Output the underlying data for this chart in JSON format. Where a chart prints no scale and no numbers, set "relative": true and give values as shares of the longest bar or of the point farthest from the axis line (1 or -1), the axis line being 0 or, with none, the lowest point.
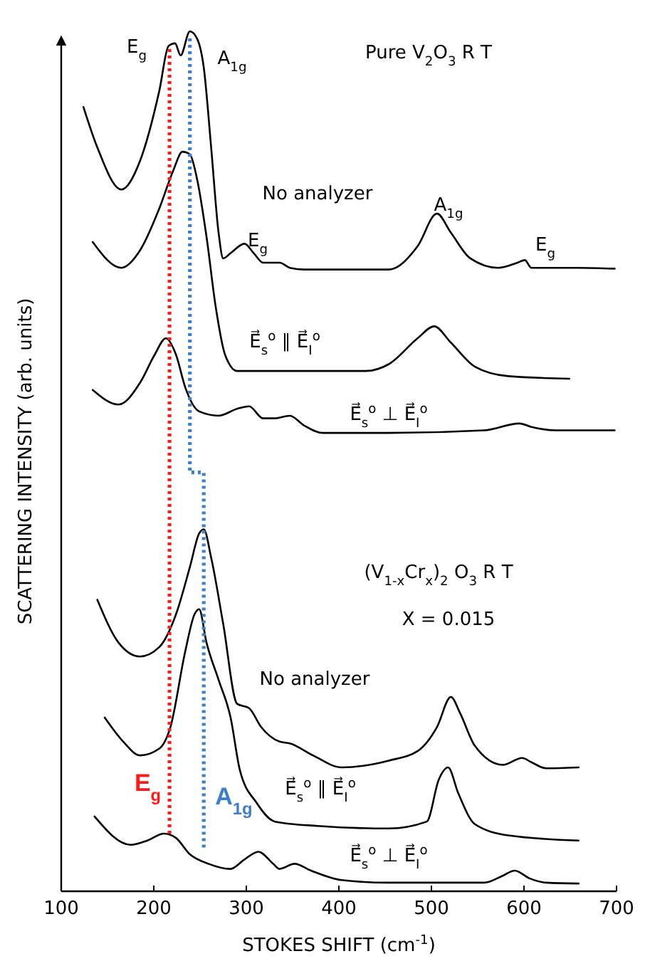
{
  "chart_data": {
    "type": "line",
    "relative": true,
    "xlabel": "STOKES SHIFT (cm$^{-1}$)",
    "ylabel": "SCATTERING INTENSITY (arb. units)",
    "xlim": [
      100,
      700
    ],
    "xticks": [
      100,
      200,
      300,
      400,
      500,
      600,
      700
    ],
    "tick_labels": "x",
    "line_style": "solid",
    "marker": "none",
    "series": [
      {
        "color": "#000000",
        "x": [
          124,
          139,
          165,
          185,
          206,
          216,
          223,
          229,
          239,
          247,
          254,
          262,
          270,
          275,
          283,
          298,
          308,
          318,
          336,
          347,
          362,
          454,
          485,
          506,
          521,
          542,
          572,
          593,
          601,
          608,
          659,
          698
        ],
        "values": [
          0.912,
          0.865,
          0.816,
          0.849,
          0.931,
          0.983,
          0.986,
          0.972,
          1,
          0.991,
          0.958,
          0.865,
          0.766,
          0.736,
          0.742,
          0.753,
          0.742,
          0.731,
          0.731,
          0.725,
          0.723,
          0.723,
          0.75,
          0.788,
          0.766,
          0.736,
          0.725,
          0.731,
          0.734,
          0.725,
          0.725,
          0.724
        ]
      },
      {
        "color": "#000000",
        "x": [
          134,
          165,
          185,
          206,
          221,
          231,
          239,
          247,
          257,
          267,
          277,
          290,
          326,
          429,
          454,
          485,
          503,
          521,
          547,
          583,
          649
        ],
        "values": [
          0.755,
          0.725,
          0.745,
          0.794,
          0.838,
          0.86,
          0.857,
          0.827,
          0.761,
          0.679,
          0.624,
          0.605,
          0.605,
          0.605,
          0.613,
          0.643,
          0.657,
          0.638,
          0.61,
          0.599,
          0.596
        ]
      },
      {
        "color": "#000000",
        "x": [
          134,
          162,
          185,
          201,
          213,
          224,
          234,
          249,
          270,
          290,
          303,
          318,
          331,
          347,
          362,
          383,
          454,
          557,
          595,
          608,
          634,
          698
        ],
        "values": [
          0.583,
          0.566,
          0.591,
          0.624,
          0.643,
          0.624,
          0.586,
          0.558,
          0.553,
          0.561,
          0.564,
          0.55,
          0.55,
          0.553,
          0.542,
          0.533,
          0.533,
          0.536,
          0.544,
          0.54,
          0.536,
          0.536
        ]
      },
      {
        "color": "#000000",
        "x": [
          139,
          162,
          185,
          206,
          224,
          239,
          249,
          254,
          262,
          275,
          290,
          303,
          316,
          336,
          347,
          372,
          403,
          454,
          485,
          506,
          521,
          531,
          547,
          577,
          598,
          608,
          624,
          659
        ],
        "values": [
          0.339,
          0.289,
          0.273,
          0.284,
          0.322,
          0.377,
          0.416,
          0.421,
          0.388,
          0.311,
          0.218,
          0.213,
          0.191,
          0.174,
          0.172,
          0.158,
          0.144,
          0.152,
          0.163,
          0.191,
          0.226,
          0.207,
          0.169,
          0.147,
          0.155,
          0.15,
          0.143,
          0.144
        ]
      },
      {
        "color": "#000000",
        "x": [
          147,
          167,
          185,
          206,
          218,
          234,
          244,
          249,
          257,
          270,
          283,
          293,
          311,
          331,
          377,
          454,
          495,
          508,
          518,
          529,
          547,
          583,
          659
        ],
        "values": [
          0.202,
          0.174,
          0.158,
          0.166,
          0.191,
          0.279,
          0.322,
          0.328,
          0.289,
          0.246,
          0.202,
          0.141,
          0.103,
          0.081,
          0.076,
          0.073,
          0.081,
          0.13,
          0.144,
          0.114,
          0.078,
          0.065,
          0.059
        ]
      },
      {
        "color": "#000000",
        "x": [
          136,
          175,
          193,
          211,
          224,
          239,
          259,
          283,
          298,
          313,
          329,
          336,
          352,
          370,
          403,
          454,
          557,
          577,
          590,
          606,
          624,
          659
        ],
        "values": [
          0.087,
          0.054,
          0.059,
          0.067,
          0.062,
          0.043,
          0.032,
          0.026,
          0.037,
          0.046,
          0.032,
          0.026,
          0.032,
          0.024,
          0.013,
          0.01,
          0.01,
          0.018,
          0.024,
          0.015,
          0.01,
          0.009
        ]
      },
      {
        "name": "E$_{g}$",
        "color": "#ff1a1a",
        "line_style": "dotted",
        "x": [
          217,
          217
        ],
        "values": [
          0.067,
          0.983
        ]
      },
      {
        "name": "A$_{1g}$",
        "color": "#3d7fc8",
        "line_style": "dotted",
        "x": [
          254,
          254,
          239,
          239
        ],
        "values": [
          0.051,
          0.487,
          0.487,
          0.994
        ]
      }
    ],
    "annotations": [
      "E$_{g}$",
      "A$_{1g}$",
      "Pure  V$_{2}$O$_{3}$   R T",
      "No analyzer",
      "E$_{g}$",
      "A$_{1g}$",
      "E$_{g}$",
      "E⃗$_{s}$$^{o}$ ∥ E⃗$_{I}$$^{o}$",
      "E⃗$_{s}$$^{o}$ ⊥ E⃗$_{I}$$^{o}$",
      "(V$_{1-x}$Cr$_{x}$)$_{2}$ O$_{3}$   R T",
      "X = 0.015",
      "No analyzer",
      "E⃗$_{s}$$^{o}$ ∥ E⃗$_{I}$$^{o}$",
      "E⃗$_{s}$$^{o}$ ⊥ E⃗$_{I}$$^{o}$"
    ]
  }
}
